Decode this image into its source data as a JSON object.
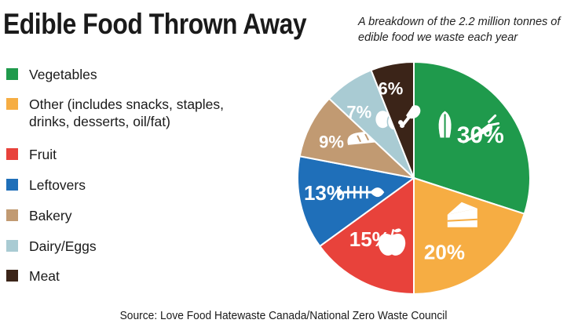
{
  "title": "Edible Food Thrown Away",
  "subtitle": "A breakdown of the 2.2 million tonnes of edible food we waste each year",
  "source": "Source: Love Food Hatewaste Canada/National Zero Waste Council",
  "chart_data": {
    "type": "pie",
    "title": "Edible Food Thrown Away",
    "subtitle": "A breakdown of the 2.2 million tonnes of edible food we waste each year",
    "slices": [
      {
        "label": "Vegetables",
        "value": 30,
        "value_label": "30%",
        "color": "#1f9a4c",
        "icon": "vegetables-icon"
      },
      {
        "label": "Other (includes snacks, staples,\ndrinks, desserts, oil/fat)",
        "value": 20,
        "value_label": "20%",
        "color": "#f6ad43",
        "icon": "cake-icon"
      },
      {
        "label": "Fruit",
        "value": 15,
        "value_label": "15%",
        "color": "#e8423b",
        "icon": "apple-icon"
      },
      {
        "label": "Leftovers",
        "value": 13,
        "value_label": "13%",
        "color": "#1f6fb9",
        "icon": "fish-bone-icon"
      },
      {
        "label": "Bakery",
        "value": 9,
        "value_label": "9%",
        "color": "#c19a72",
        "icon": "bread-icon"
      },
      {
        "label": "Dairy/Eggs",
        "value": 7,
        "value_label": "7%",
        "color": "#a9cbd3",
        "icon": "eggs-icon"
      },
      {
        "label": "Meat",
        "value": 6,
        "value_label": "6%",
        "color": "#3b2418",
        "icon": "drumstick-icon"
      }
    ],
    "legend_position": "left"
  }
}
